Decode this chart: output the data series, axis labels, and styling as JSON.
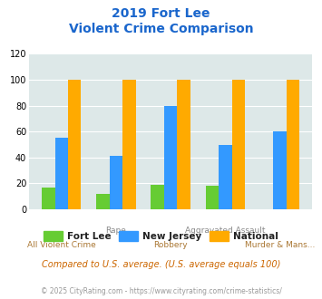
{
  "title_line1": "2019 Fort Lee",
  "title_line2": "Violent Crime Comparison",
  "categories_top": [
    "",
    "Rape",
    "",
    "Aggravated Assault",
    ""
  ],
  "categories_bot": [
    "All Violent Crime",
    "",
    "Robbery",
    "",
    "Murder & Mans..."
  ],
  "fort_lee": [
    17,
    12,
    19,
    18,
    0
  ],
  "new_jersey": [
    55,
    41,
    80,
    50,
    60
  ],
  "national": [
    100,
    100,
    100,
    100,
    100
  ],
  "colors": {
    "fort_lee": "#66cc33",
    "new_jersey": "#3399ff",
    "national": "#ffaa00"
  },
  "ylim": [
    0,
    120
  ],
  "yticks": [
    0,
    20,
    40,
    60,
    80,
    100,
    120
  ],
  "bg_color": "#dde8e8",
  "legend_labels": [
    "Fort Lee",
    "New Jersey",
    "National"
  ],
  "footnote1": "Compared to U.S. average. (U.S. average equals 100)",
  "footnote2": "© 2025 CityRating.com - https://www.cityrating.com/crime-statistics/",
  "title_color": "#1a66cc",
  "xlabel_top_color": "#888888",
  "xlabel_bot_color": "#aa7733",
  "footnote1_color": "#cc6600",
  "footnote2_color": "#999999"
}
